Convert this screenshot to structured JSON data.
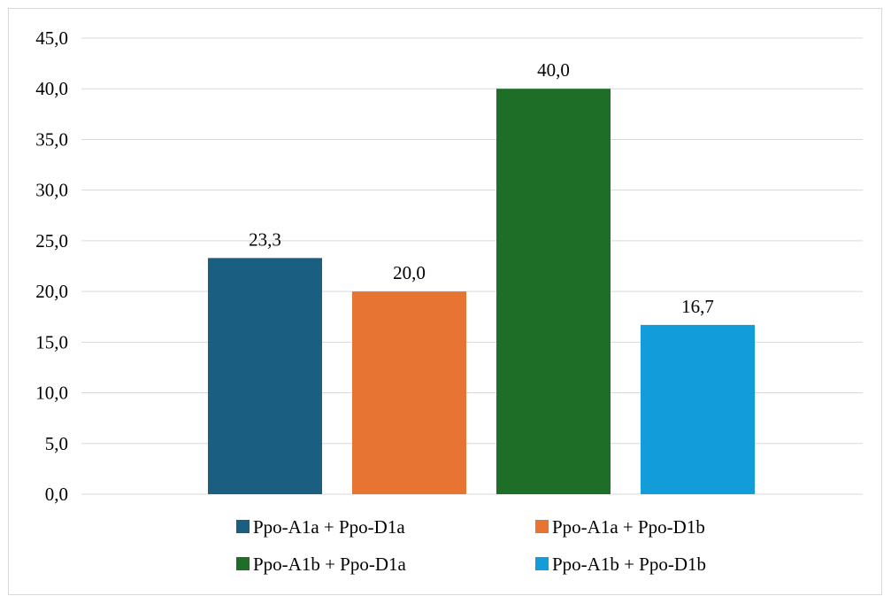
{
  "chart_data": {
    "type": "bar",
    "categories": [
      ""
    ],
    "series": [
      {
        "name": "Ppo-A1a + Ppo-D1a",
        "values": [
          23.3
        ],
        "label": "23,3",
        "color": "#1a5f82"
      },
      {
        "name": "Ppo-A1a + Ppo-D1b",
        "values": [
          20.0
        ],
        "label": "20,0",
        "color": "#e87434"
      },
      {
        "name": "Ppo-A1b + Ppo-D1a",
        "values": [
          40.0
        ],
        "label": "40,0",
        "color": "#1e6e28"
      },
      {
        "name": "Ppo-A1b + Ppo-D1b",
        "values": [
          16.7
        ],
        "label": "16,7",
        "color": "#129cd9"
      }
    ],
    "ylim": [
      0,
      45
    ],
    "yticks": [
      0,
      5,
      10,
      15,
      20,
      25,
      30,
      35,
      40,
      45
    ],
    "ytick_labels": [
      "0,0",
      "5,0",
      "10,0",
      "15,0",
      "20,0",
      "25,0",
      "30,0",
      "35,0",
      "40,0",
      "45,0"
    ],
    "grid": true,
    "gridline_color": "#d9d9d9",
    "legend_position": "bottom",
    "title": "",
    "xlabel": "",
    "ylabel": ""
  }
}
